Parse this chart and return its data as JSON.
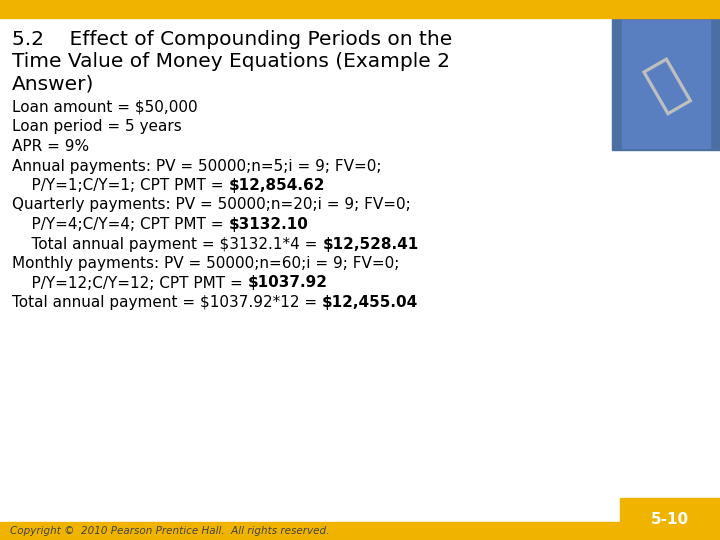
{
  "title_line1": "5.2    Effect of Compounding Periods on the",
  "title_line2": "Time Value of Money Equations (Example 2",
  "title_line3": "Answer)",
  "footer_text": "Copyright ©  2010 Pearson Prentice Hall.  All rights reserved.",
  "slide_number": "5-10",
  "bg_color": "#ffffff",
  "header_bar_color": "#F0B400",
  "slide_num_bg": "#F0B400",
  "title_color": "#000000",
  "body_color": "#000000",
  "title_fontsize": 14.5,
  "body_fontsize": 11.0,
  "footer_fontsize": 7.5,
  "lines_data": [
    [
      "Loan amount = $50,000",
      null
    ],
    [
      "Loan period = 5 years",
      null
    ],
    [
      "APR = 9%",
      null
    ],
    [
      "Annual payments: PV = 50000;n=5;i = 9; FV=0;",
      null
    ],
    [
      "    P/Y=1;C/Y=1; CPT PMT = ",
      "$12,854.62"
    ],
    [
      "Quarterly payments: PV = 50000;n=20;i = 9; FV=0;",
      null
    ],
    [
      "    P/Y=4;C/Y=4; CPT PMT = ",
      "$3132.10"
    ],
    [
      "    Total annual payment = $3132.1*4 = ",
      "$12,528.41"
    ],
    [
      "Monthly payments: PV = 50000;n=60;i = 9; FV=0;",
      null
    ],
    [
      "    P/Y=12;C/Y=12; CPT PMT = ",
      "$1037.92"
    ],
    [
      "Total annual payment = $1037.92*12 = ",
      "$12,455.04"
    ]
  ]
}
